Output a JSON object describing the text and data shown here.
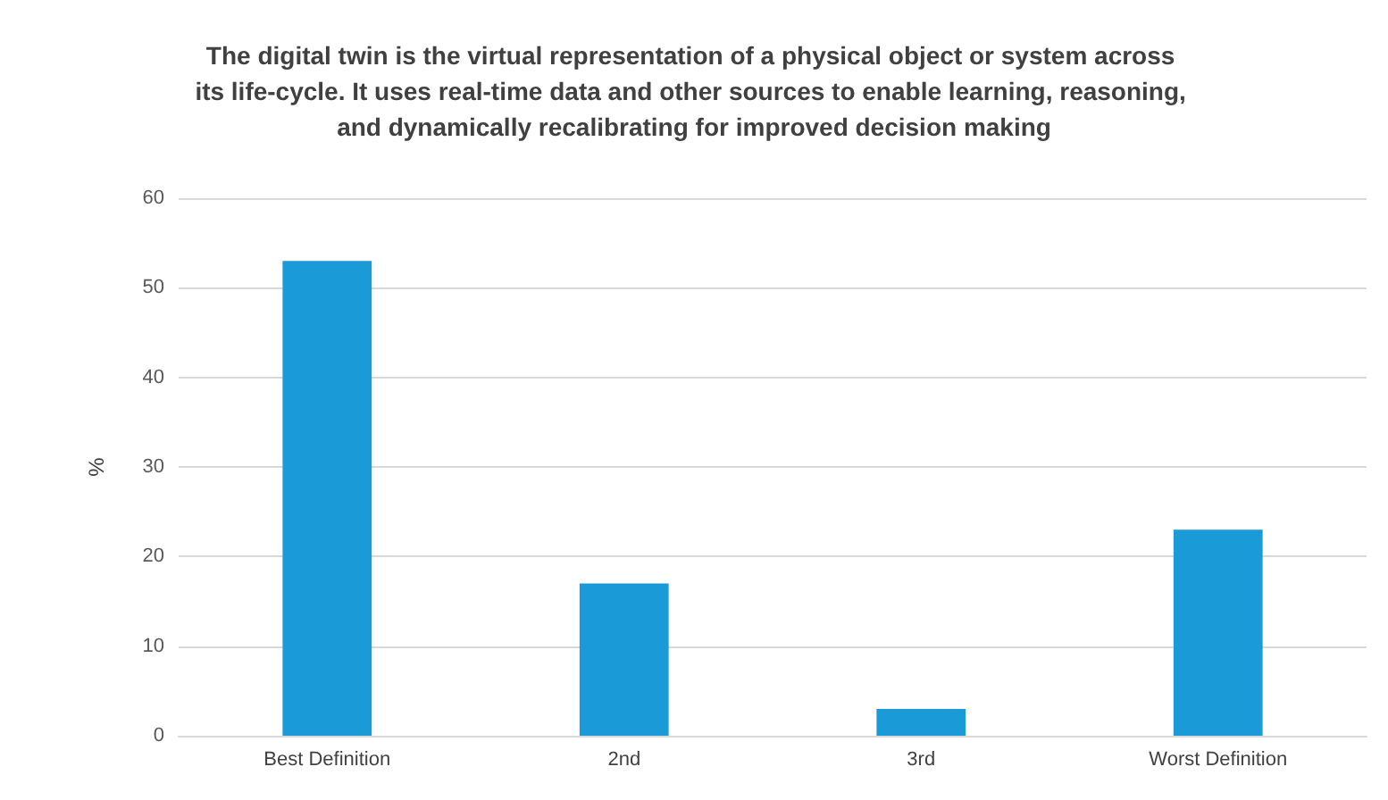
{
  "chart_data": {
    "type": "bar",
    "title": "The digital twin is the virtual representation of a physical object or system across its life-cycle. It uses real-time data and other sources to enable learning, reasoning, and dynamically recalibrating for improved decision making",
    "categories": [
      "Best Definition",
      "2nd",
      "3rd",
      "Worst Definition"
    ],
    "values": [
      53,
      17,
      3,
      23
    ],
    "color": "#1a9ad6",
    "ylabel": "%",
    "ylim": [
      0,
      60
    ],
    "yticks": [
      0,
      10,
      20,
      30,
      40,
      50,
      60
    ],
    "grid": "y"
  }
}
